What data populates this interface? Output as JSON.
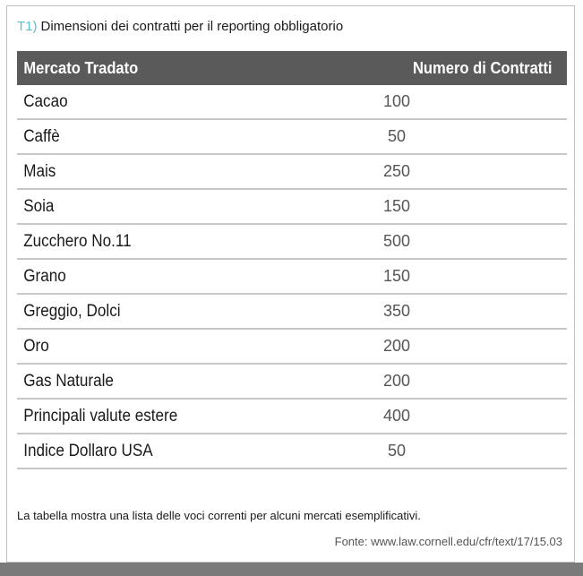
{
  "header": {
    "tag": "T1)",
    "title": "Dimensioni dei contratti per il reporting obbligatorio"
  },
  "table": {
    "columns": [
      "Mercato Tradato",
      "Numero di Contratti"
    ],
    "rows": [
      {
        "market": "Cacao",
        "count": "100"
      },
      {
        "market": "Caffè",
        "count": "50"
      },
      {
        "market": "Mais",
        "count": "250"
      },
      {
        "market": "Soia",
        "count": "150"
      },
      {
        "market": "Zucchero No.11",
        "count": "500"
      },
      {
        "market": "Grano",
        "count": "150"
      },
      {
        "market": "Greggio, Dolci",
        "count": "350"
      },
      {
        "market": "Oro",
        "count": "200"
      },
      {
        "market": "Gas Naturale",
        "count": "200"
      },
      {
        "market": "Principali valute estere",
        "count": "400"
      },
      {
        "market": "Indice Dollaro USA",
        "count": "50"
      }
    ]
  },
  "footer": {
    "note": "La tabella mostra una lista delle voci correnti per alcuni mercati esemplificativi.",
    "source": "Fonte: www.law.cornell.edu/cfr/text/17/15.03"
  }
}
